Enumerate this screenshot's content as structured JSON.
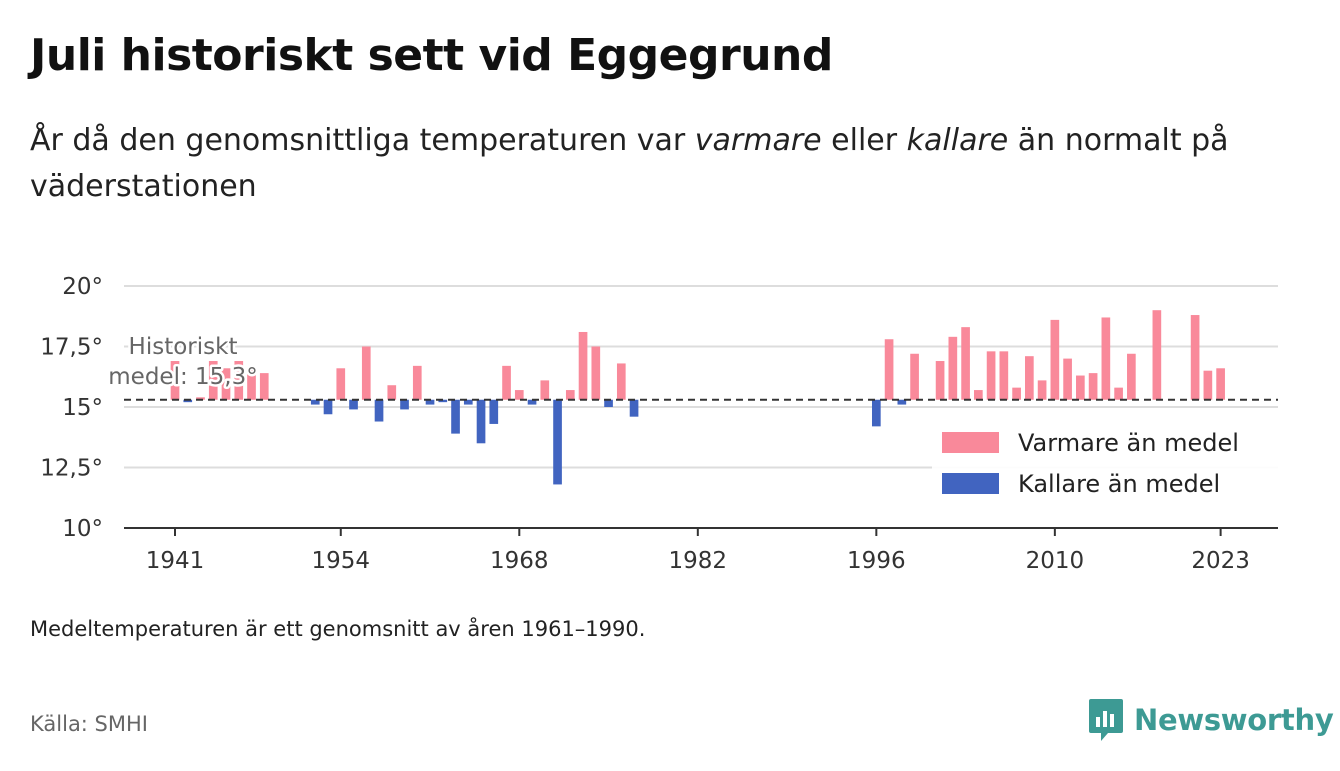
{
  "header": {
    "title": "Juli historiskt sett vid Eggegrund",
    "subtitle_before_1": "År då den genomsnittliga temperaturen var ",
    "subtitle_em_1": "varmare",
    "subtitle_between": " eller ",
    "subtitle_em_2": "kallare",
    "subtitle_after": " än normalt på väderstationen"
  },
  "footnote": "Medeltemperaturen är ett genomsnitt av åren 1961–1990.",
  "source": "Källa: SMHI",
  "brand": {
    "name": "Newsworthy",
    "color": "#3d9a94"
  },
  "chart_data": {
    "type": "bar",
    "baseline": 15.3,
    "baseline_label_line1": "Historiskt",
    "baseline_label_line2": "medel: 15,3°",
    "ylim": [
      10,
      20
    ],
    "y_ticks": [
      {
        "value": 10,
        "label": "10°"
      },
      {
        "value": 12.5,
        "label": "12,5°"
      },
      {
        "value": 15,
        "label": "15°"
      },
      {
        "value": 17.5,
        "label": "17,5°"
      },
      {
        "value": 20,
        "label": "20°"
      }
    ],
    "xlim": [
      1937,
      2027.5
    ],
    "x_ticks": [
      1941,
      1954,
      1968,
      1982,
      1996,
      2010,
      2023
    ],
    "legend": [
      {
        "label": "Varmare än medel",
        "color": "#f9899a"
      },
      {
        "label": "Kallare än medel",
        "color": "#4164c0"
      }
    ],
    "colors": {
      "warm": "#f9899a",
      "cold": "#4164c0",
      "baseline": "#333333",
      "grid": "#dddddd"
    },
    "series": [
      {
        "year": 1941,
        "value": 16.9
      },
      {
        "year": 1942,
        "value": 15.2
      },
      {
        "year": 1943,
        "value": 15.4
      },
      {
        "year": 1944,
        "value": 16.9
      },
      {
        "year": 1945,
        "value": 16.6
      },
      {
        "year": 1946,
        "value": 16.9
      },
      {
        "year": 1947,
        "value": 16.6
      },
      {
        "year": 1948,
        "value": 16.4
      },
      {
        "year": 1952,
        "value": 15.1
      },
      {
        "year": 1953,
        "value": 14.7
      },
      {
        "year": 1954,
        "value": 16.6
      },
      {
        "year": 1955,
        "value": 14.9
      },
      {
        "year": 1956,
        "value": 17.5
      },
      {
        "year": 1957,
        "value": 14.4
      },
      {
        "year": 1958,
        "value": 15.9
      },
      {
        "year": 1959,
        "value": 14.9
      },
      {
        "year": 1960,
        "value": 16.7
      },
      {
        "year": 1961,
        "value": 15.1
      },
      {
        "year": 1962,
        "value": 15.2
      },
      {
        "year": 1963,
        "value": 13.9
      },
      {
        "year": 1964,
        "value": 15.1
      },
      {
        "year": 1965,
        "value": 13.5
      },
      {
        "year": 1966,
        "value": 14.3
      },
      {
        "year": 1967,
        "value": 16.7
      },
      {
        "year": 1968,
        "value": 15.7
      },
      {
        "year": 1969,
        "value": 15.1
      },
      {
        "year": 1970,
        "value": 16.1
      },
      {
        "year": 1971,
        "value": 11.8
      },
      {
        "year": 1972,
        "value": 15.7
      },
      {
        "year": 1973,
        "value": 18.1
      },
      {
        "year": 1974,
        "value": 17.5
      },
      {
        "year": 1975,
        "value": 15.0
      },
      {
        "year": 1976,
        "value": 16.8
      },
      {
        "year": 1977,
        "value": 14.6
      },
      {
        "year": 1996,
        "value": 14.2
      },
      {
        "year": 1997,
        "value": 17.8
      },
      {
        "year": 1998,
        "value": 15.1
      },
      {
        "year": 1999,
        "value": 17.2
      },
      {
        "year": 2001,
        "value": 16.9
      },
      {
        "year": 2002,
        "value": 17.9
      },
      {
        "year": 2003,
        "value": 18.3
      },
      {
        "year": 2004,
        "value": 15.7
      },
      {
        "year": 2005,
        "value": 17.3
      },
      {
        "year": 2006,
        "value": 17.3
      },
      {
        "year": 2007,
        "value": 15.8
      },
      {
        "year": 2008,
        "value": 17.1
      },
      {
        "year": 2009,
        "value": 16.1
      },
      {
        "year": 2010,
        "value": 18.6
      },
      {
        "year": 2011,
        "value": 17.0
      },
      {
        "year": 2012,
        "value": 16.3
      },
      {
        "year": 2013,
        "value": 16.4
      },
      {
        "year": 2014,
        "value": 18.7
      },
      {
        "year": 2015,
        "value": 15.8
      },
      {
        "year": 2016,
        "value": 17.2
      },
      {
        "year": 2018,
        "value": 19.0
      },
      {
        "year": 2021,
        "value": 18.8
      },
      {
        "year": 2022,
        "value": 16.5
      },
      {
        "year": 2023,
        "value": 16.6
      }
    ]
  }
}
